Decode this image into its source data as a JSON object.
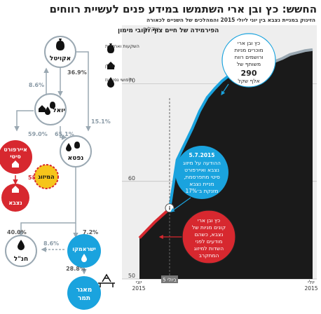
{
  "title": "החשש: כץ ובן ארי השתמשו במידע פנים לעשיית רווחים",
  "subtitle": "הזינוק במניית נצבא בין יוני ליולי 2015 והמהלכים של השניים לכאורה",
  "pyramid": {
    "heading": "הפירמידה של חיים צוף וקובי מימון",
    "akiteel": "אקויטל",
    "yoel": "יואל",
    "naftali": "נפטא",
    "airport": [
      "איירפורט",
      "סיטי"
    ],
    "merger": "המיזוג",
    "nitsba": "נצבא",
    "hanal": "חנ\"ל",
    "isramco": "ישראמקו",
    "tamar": [
      "מאגר",
      "תמר"
    ]
  },
  "pyramid_links": [
    {
      "from": "אקויטל",
      "to": "יואל",
      "value": "36.9%"
    },
    {
      "from": "יואל",
      "to": "אקויטל",
      "value": "8.6%"
    },
    {
      "from": "אקויטל",
      "to": "נפטא",
      "value": "15.1%"
    },
    {
      "from": "יואל",
      "to": "איירפורט סיטי",
      "value": "59.0%"
    },
    {
      "from": "יואל",
      "to": "נפטא",
      "value": "65.1%"
    },
    {
      "from": "איירפורט סיטי",
      "to": "נצבא",
      "value": "58.6%"
    },
    {
      "from": "נפטא",
      "to": "חנ\"ל",
      "value": "40.0%"
    },
    {
      "from": "נפטא",
      "to": "ישראמקו",
      "value": "7.2%"
    },
    {
      "from": "ישראמקו",
      "to": "חנ\"ל",
      "value": "8.6%"
    },
    {
      "from": "ישראמקו",
      "to": "מאגר תמר",
      "value": "28.8%"
    }
  ],
  "legend": [
    {
      "label": "השקעות ואחזקות",
      "icon": "money-bag-icon"
    },
    {
      "label": "נדל\"ן",
      "icon": "house-icon"
    },
    {
      "label": "חיפושי נפט וגז",
      "icon": "oil-drop-icon"
    }
  ],
  "colors": {
    "red": "#d7282f",
    "blue": "#1aa3de",
    "gray": "#9aa8b2",
    "line_blue": "#1aa3de",
    "area": "#1a1a1a"
  },
  "chart_data": {
    "type": "area",
    "unit": "שקלים",
    "x_start_label": [
      "יוני",
      "2015"
    ],
    "x_end_label": [
      "יולי",
      "2015"
    ],
    "event_label": "5 ביולי",
    "ylim": [
      50,
      76
    ],
    "yticks": [
      50,
      60,
      70
    ],
    "event_index": 4,
    "values": [
      54.2,
      55.0,
      55.8,
      56.5,
      57.2,
      62.2,
      63.8,
      65.4,
      67.2,
      68.6,
      69.5,
      70.3,
      70.9,
      71.3,
      71.7,
      72.1,
      72.4,
      72.2,
      72.3,
      72.6,
      73.0,
      73.2,
      73.4,
      73.5
    ]
  },
  "annotations": {
    "top": [
      "כץ ובן ארי",
      "מוכרים מניות",
      "ורושמים רווח",
      "משותף של",
      "290",
      "אלף שקל"
    ],
    "middle_date": "5.7.2015",
    "middle": [
      "ההודעה על מיזוג",
      "נצבא ואיירפורט",
      "סיטי מתפרסמת,",
      "מניית נצבא",
      "מזנקת ב־17%"
    ],
    "bottom": [
      "כץ ובן ארי",
      "קונים מניות של",
      "נצבא, כשהם",
      "מודעים לפני",
      "השדות למיזוג",
      "המתקרב"
    ]
  }
}
